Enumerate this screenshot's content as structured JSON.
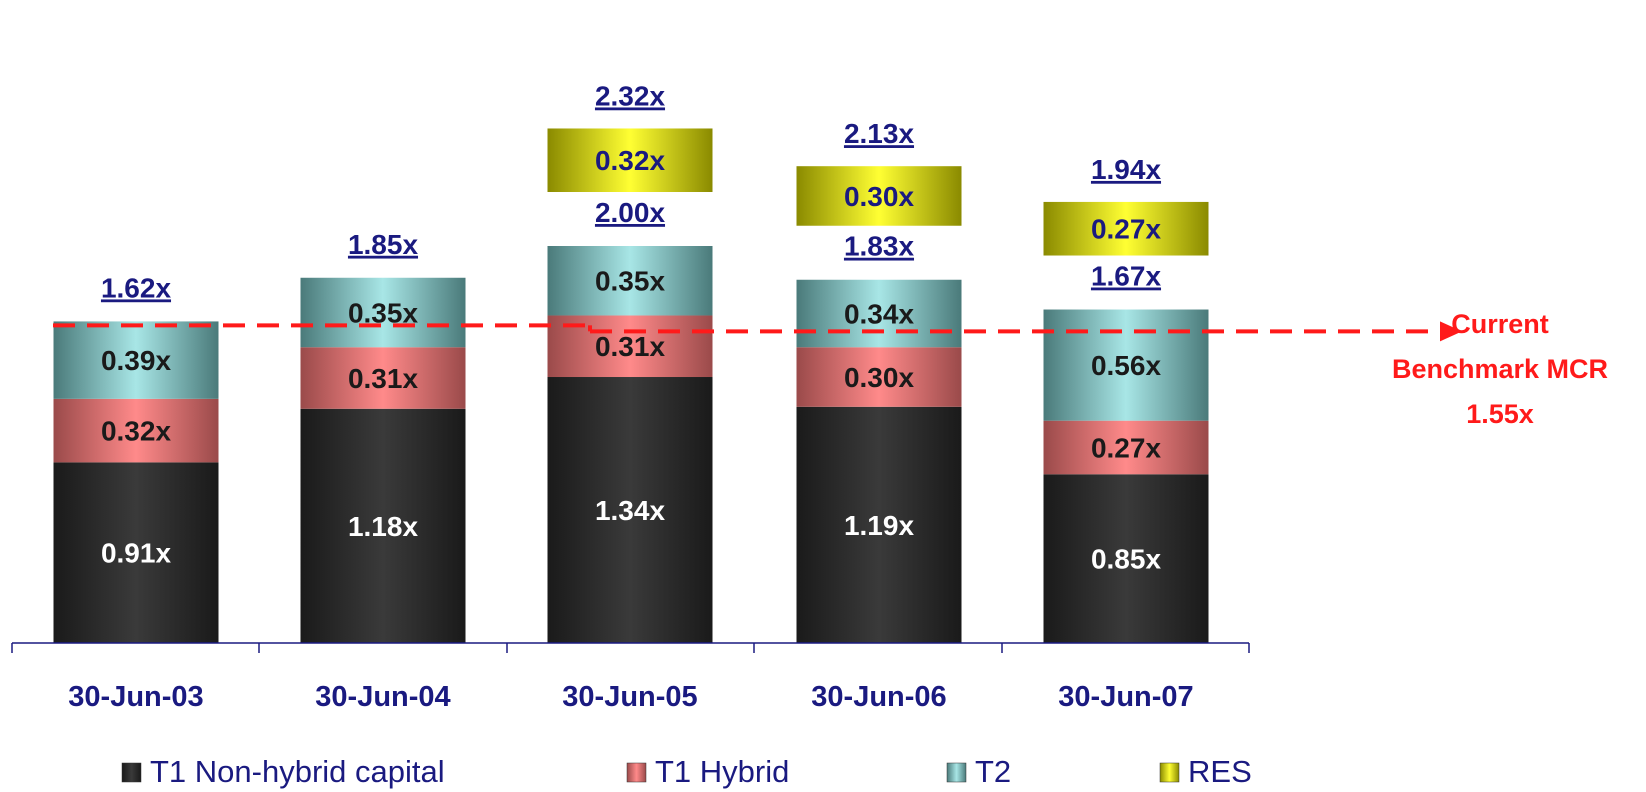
{
  "chart_data": {
    "type": "bar",
    "stacked": true,
    "categories": [
      "30-Jun-03",
      "30-Jun-04",
      "30-Jun-05",
      "30-Jun-06",
      "30-Jun-07"
    ],
    "series": [
      {
        "name": "T1 Non-hybrid capital",
        "values": [
          0.91,
          1.18,
          1.34,
          1.19,
          0.85
        ],
        "labels": [
          "0.91x",
          "1.18x",
          "1.34x",
          "1.19x",
          "0.85x"
        ],
        "color": "#2b2b2b"
      },
      {
        "name": "T1 Hybrid",
        "values": [
          0.32,
          0.31,
          0.31,
          0.3,
          0.27
        ],
        "labels": [
          "0.32x",
          "0.31x",
          "0.31x",
          "0.30x",
          "0.27x"
        ],
        "color": "#f08080"
      },
      {
        "name": "T2",
        "values": [
          0.39,
          0.35,
          0.35,
          0.34,
          0.56
        ],
        "labels": [
          "0.39x",
          "0.35x",
          "0.35x",
          "0.34x",
          "0.56x"
        ],
        "color": "#8fd4d4"
      },
      {
        "name": "RES",
        "values": [
          null,
          null,
          0.32,
          0.3,
          0.27
        ],
        "labels": [
          "",
          "",
          "0.32x",
          "0.30x",
          "0.27x"
        ],
        "color": "#e8e800"
      }
    ],
    "totals_excl_res": [
      "1.62x",
      "1.85x",
      "2.00x",
      "1.83x",
      "1.67x"
    ],
    "totals_incl_res": [
      "",
      "",
      "2.32x",
      "2.13x",
      "1.94x"
    ],
    "benchmark": {
      "value": 1.55,
      "label_lines": [
        "Current",
        "Benchmark MCR",
        "1.55x"
      ],
      "color": "#ff1a1a"
    },
    "legend_position": "bottom",
    "grid": false,
    "ylim": [
      0,
      2.4
    ]
  },
  "colors": {
    "axis": "#1a1a80",
    "text": "#1a1a80",
    "benchmark": "#ff1a1a"
  }
}
